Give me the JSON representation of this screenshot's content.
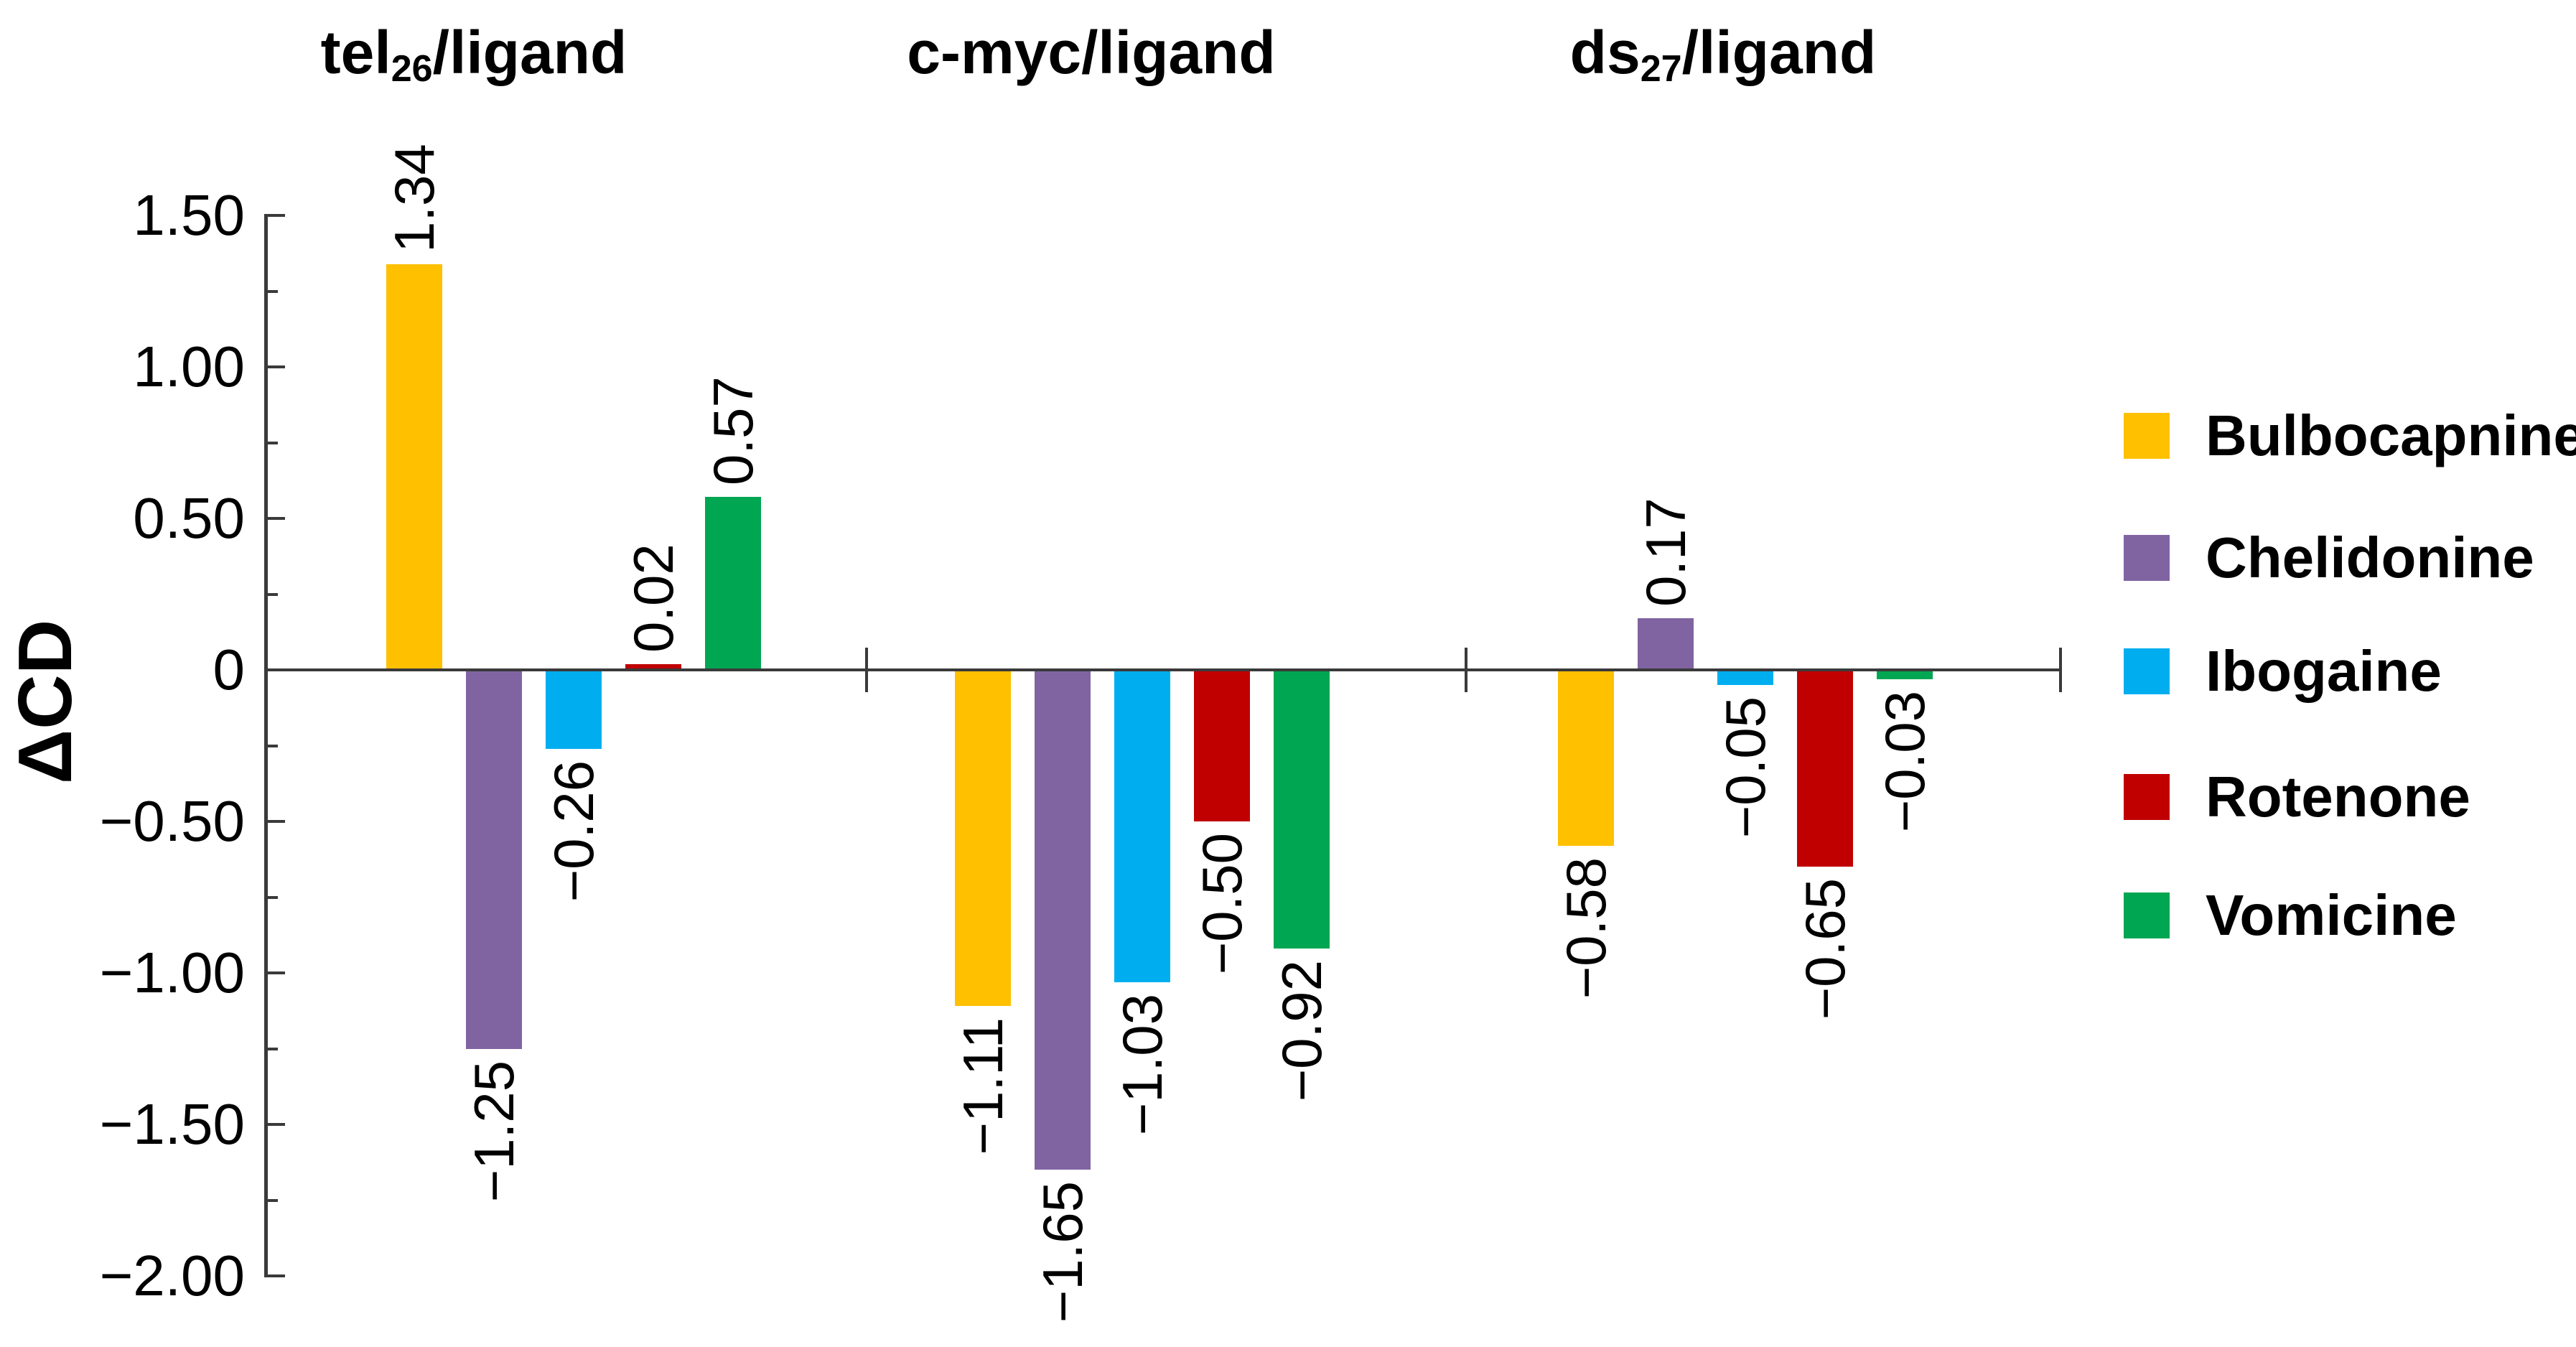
{
  "chart_data": {
    "type": "bar",
    "title": "",
    "ylabel": "ΔCD",
    "ylim": [
      -2.0,
      1.5
    ],
    "ytick_major_step": 0.5,
    "ytick_minor_step": 0.25,
    "ytick_labels": [
      "1.50",
      "1.00",
      "0.50",
      "0",
      "−0.50",
      "−1.00",
      "−1.50",
      "−2.00"
    ],
    "grid": false,
    "legend_position": "right",
    "groups": [
      {
        "title_main": "tel",
        "title_sub": "26",
        "title_rest": "/ligand"
      },
      {
        "title_main": "c-myc",
        "title_sub": "",
        "title_rest": "/ligand"
      },
      {
        "title_main": "ds",
        "title_sub": "27",
        "title_rest": "/ligand"
      }
    ],
    "series": [
      {
        "name": "Bulbocapnine",
        "color": "#FFC000",
        "values": [
          1.34,
          -1.11,
          -0.58
        ],
        "labels": [
          "1.34",
          "−1.11",
          "−0.58"
        ]
      },
      {
        "name": "Chelidonine",
        "color": "#8064A2",
        "values": [
          -1.25,
          -1.65,
          0.17
        ],
        "labels": [
          "−1.25",
          "−1.65",
          "0.17"
        ]
      },
      {
        "name": "Ibogaine",
        "color": "#00AEEF",
        "values": [
          -0.26,
          -1.03,
          -0.05
        ],
        "labels": [
          "−0.26",
          "−1.03",
          "−0.05"
        ]
      },
      {
        "name": "Rotenone",
        "color": "#C00000",
        "values": [
          0.02,
          -0.5,
          -0.65
        ],
        "labels": [
          "0.02",
          "−0.50",
          "−0.65"
        ]
      },
      {
        "name": "Vomicine",
        "color": "#00A651",
        "values": [
          0.57,
          -0.92,
          -0.03
        ],
        "labels": [
          "0.57",
          "−0.92",
          "−0.03"
        ]
      }
    ],
    "axis_color": "#3a3a3a"
  }
}
